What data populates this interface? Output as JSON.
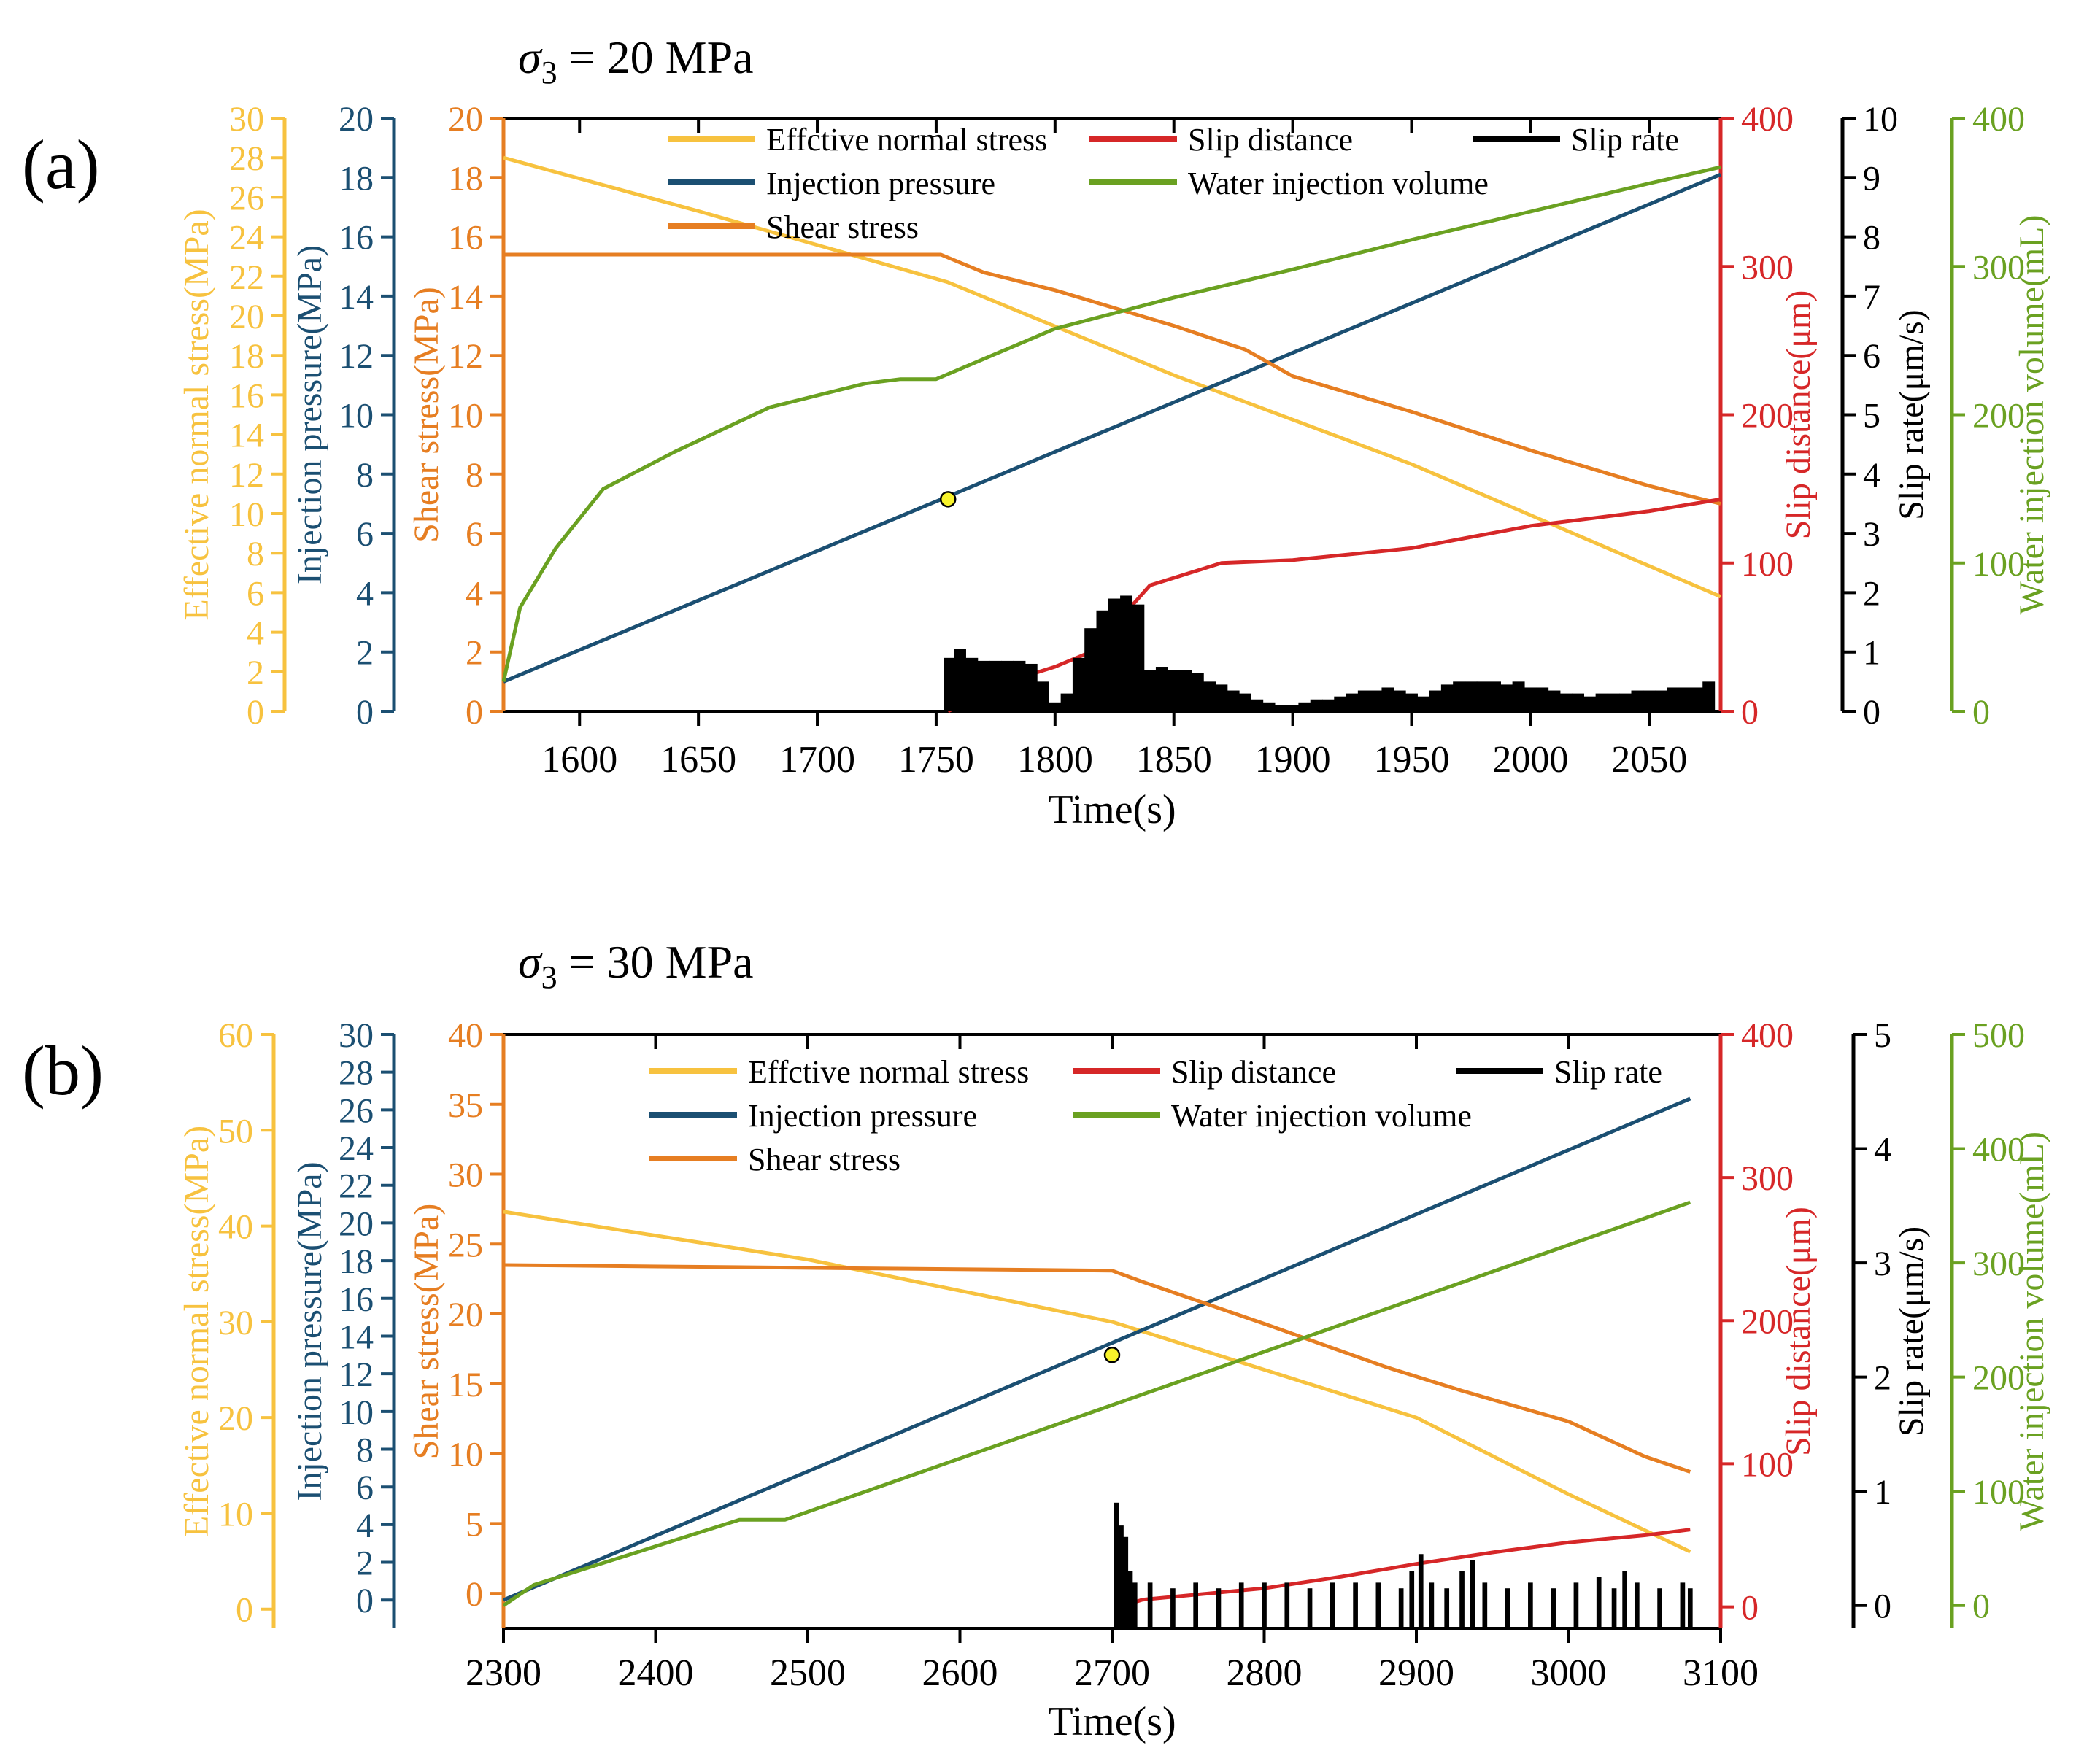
{
  "colors": {
    "effective_normal_stress": "#F7C23F",
    "injection_pressure": "#1B4F72",
    "shear_stress": "#E67E22",
    "slip_distance": "#D62728",
    "slip_rate": "#000000",
    "water_injection_volume": "#6AA121",
    "marker_fill": "#F8F32B"
  },
  "chart_data": [
    {
      "type": "line",
      "panel_label": "(a)",
      "title": "σ3 = 20 MPa",
      "title_main": "σ",
      "title_sub": "3",
      "title_rest": " = 20 MPa",
      "xlabel": "Time(s)",
      "xlim": [
        1568,
        2080
      ],
      "xticks": [
        1600,
        1650,
        1700,
        1750,
        1800,
        1850,
        1900,
        1950,
        2000,
        2050
      ],
      "legend": [
        {
          "label": "Effctive normal stress",
          "key": "effective_normal_stress"
        },
        {
          "label": "Slip distance",
          "key": "slip_distance"
        },
        {
          "label": "Slip rate",
          "key": "slip_rate"
        },
        {
          "label": "Injection pressure",
          "key": "injection_pressure"
        },
        {
          "label": "Water injection volume",
          "key": "water_injection_volume"
        },
        {
          "label": "Shear stress",
          "key": "shear_stress"
        }
      ],
      "axes": {
        "effective_normal_stress": {
          "label": "Effective normal stress(MPa)",
          "ylim": [
            0,
            30
          ],
          "ticks": [
            0,
            2,
            4,
            6,
            8,
            10,
            12,
            14,
            16,
            18,
            20,
            22,
            24,
            26,
            28,
            30
          ]
        },
        "injection_pressure": {
          "label": "Injection pressure(MPa)",
          "ylim": [
            0,
            20
          ],
          "ticks": [
            0,
            2,
            4,
            6,
            8,
            10,
            12,
            14,
            16,
            18,
            20
          ]
        },
        "shear_stress": {
          "label": "Shear stress(MPa)",
          "ylim": [
            0,
            20
          ],
          "ticks": [
            0,
            2,
            4,
            6,
            8,
            10,
            12,
            14,
            16,
            18,
            20
          ]
        },
        "slip_distance": {
          "label": "Slip distance(μm)",
          "ylim": [
            0,
            400
          ],
          "ticks": [
            0,
            100,
            200,
            300,
            400
          ]
        },
        "slip_rate": {
          "label": "Slip rate(μm/s)",
          "ylim": [
            0,
            10
          ],
          "ticks": [
            0,
            1,
            2,
            3,
            4,
            5,
            6,
            7,
            8,
            9,
            10
          ]
        },
        "water_injection_volume": {
          "label": "Water injection volume(mL)",
          "ylim": [
            0,
            400
          ],
          "ticks": [
            0,
            100,
            200,
            300,
            400
          ]
        }
      },
      "series": [
        {
          "name": "Effctive normal stress",
          "key": "effective_normal_stress",
          "axis": "effective_normal_stress",
          "x": [
            1568,
            1650,
            1755,
            1850,
            1950,
            2080
          ],
          "y": [
            28.0,
            25.3,
            21.7,
            17.0,
            12.5,
            5.8
          ]
        },
        {
          "name": "Injection pressure",
          "key": "injection_pressure",
          "axis": "injection_pressure",
          "x": [
            1568,
            2080
          ],
          "y": [
            1.0,
            18.1
          ]
        },
        {
          "name": "Shear stress",
          "key": "shear_stress",
          "axis": "shear_stress",
          "x": [
            1568,
            1600,
            1700,
            1752,
            1770,
            1800,
            1850,
            1880,
            1900,
            1950,
            2000,
            2050,
            2080
          ],
          "y": [
            15.4,
            15.4,
            15.4,
            15.4,
            14.8,
            14.2,
            13.0,
            12.2,
            11.3,
            10.1,
            8.8,
            7.6,
            7.0
          ]
        },
        {
          "name": "Slip distance",
          "key": "slip_distance",
          "axis": "slip_distance",
          "x": [
            1755,
            1780,
            1800,
            1815,
            1840,
            1870,
            1900,
            1950,
            2000,
            2050,
            2080
          ],
          "y": [
            0,
            20,
            30,
            40,
            85,
            100,
            102,
            110,
            125,
            135,
            143
          ]
        },
        {
          "name": "Water injection volume",
          "key": "water_injection_volume",
          "axis": "water_injection_volume",
          "x": [
            1568,
            1575,
            1590,
            1610,
            1640,
            1680,
            1720,
            1735,
            1750,
            1800,
            1850,
            1900,
            1950,
            2000,
            2050,
            2080
          ],
          "y": [
            20,
            70,
            110,
            150,
            175,
            205,
            221,
            224,
            224,
            258,
            279,
            298,
            318,
            337,
            356,
            367
          ]
        },
        {
          "name": "Slip rate",
          "key": "slip_rate",
          "axis": "slip_rate",
          "style": "bars",
          "x": [
            1756,
            1760,
            1765,
            1770,
            1775,
            1780,
            1785,
            1790,
            1795,
            1800,
            1805,
            1810,
            1815,
            1820,
            1825,
            1830,
            1835,
            1840,
            1845,
            1850,
            1855,
            1860,
            1865,
            1870,
            1875,
            1880,
            1885,
            1890,
            1895,
            1900,
            1905,
            1910,
            1915,
            1920,
            1925,
            1930,
            1935,
            1940,
            1945,
            1950,
            1955,
            1960,
            1965,
            1970,
            1975,
            1980,
            1985,
            1990,
            1995,
            2000,
            2005,
            2010,
            2015,
            2020,
            2025,
            2030,
            2035,
            2040,
            2045,
            2050,
            2055,
            2060,
            2065,
            2070,
            2075
          ],
          "y": [
            0.9,
            1.05,
            0.9,
            0.85,
            0.85,
            0.85,
            0.85,
            0.8,
            0.5,
            0.15,
            0.3,
            0.9,
            1.4,
            1.7,
            1.9,
            1.95,
            1.8,
            0.7,
            0.75,
            0.7,
            0.7,
            0.65,
            0.5,
            0.45,
            0.35,
            0.3,
            0.2,
            0.15,
            0.1,
            0.1,
            0.15,
            0.2,
            0.2,
            0.25,
            0.3,
            0.35,
            0.35,
            0.4,
            0.35,
            0.3,
            0.25,
            0.35,
            0.45,
            0.5,
            0.5,
            0.5,
            0.5,
            0.45,
            0.5,
            0.4,
            0.4,
            0.35,
            0.3,
            0.3,
            0.25,
            0.3,
            0.3,
            0.3,
            0.35,
            0.35,
            0.35,
            0.4,
            0.4,
            0.4,
            0.5
          ]
        },
        {
          "name": "Slip onset marker",
          "key": "marker",
          "axis": "injection_pressure",
          "style": "marker",
          "x": [
            1755
          ],
          "y": [
            7.15
          ]
        }
      ]
    },
    {
      "type": "line",
      "panel_label": "(b)",
      "title": "σ3 = 30 MPa",
      "title_main": "σ",
      "title_sub": "3",
      "title_rest": " = 30 MPa",
      "xlabel": "Time(s)",
      "xlim": [
        2300,
        3100
      ],
      "xticks": [
        2300,
        2400,
        2500,
        2600,
        2700,
        2800,
        2900,
        3000,
        3100
      ],
      "legend": [
        {
          "label": "Effctive normal stress",
          "key": "effective_normal_stress"
        },
        {
          "label": "Slip distance",
          "key": "slip_distance"
        },
        {
          "label": "Slip rate",
          "key": "slip_rate"
        },
        {
          "label": "Injection pressure",
          "key": "injection_pressure"
        },
        {
          "label": "Water injection volume",
          "key": "water_injection_volume"
        },
        {
          "label": "Shear stress",
          "key": "shear_stress"
        }
      ],
      "axes": {
        "effective_normal_stress": {
          "label": "Effective normal stress(MPa)",
          "ylim": [
            -2,
            60
          ],
          "ticks": [
            0,
            10,
            20,
            30,
            40,
            50,
            60
          ]
        },
        "injection_pressure": {
          "label": "Injection pressure(MPa)",
          "ylim": [
            -1.5,
            30
          ],
          "ticks": [
            0,
            2,
            4,
            6,
            8,
            10,
            12,
            14,
            16,
            18,
            20,
            22,
            24,
            26,
            28,
            30
          ]
        },
        "shear_stress": {
          "label": "Shear stress(MPa)",
          "ylim": [
            -2.5,
            40
          ],
          "ticks": [
            0,
            5,
            10,
            15,
            20,
            25,
            30,
            35,
            40
          ]
        },
        "slip_distance": {
          "label": "Slip distance(μm)",
          "ylim": [
            -15,
            400
          ],
          "ticks": [
            0,
            100,
            200,
            300,
            400
          ]
        },
        "slip_rate": {
          "label": "Slip rate(μm/s)",
          "ylim": [
            -0.2,
            5
          ],
          "ticks": [
            0,
            1,
            2,
            3,
            4,
            5
          ]
        },
        "water_injection_volume": {
          "label": "Water injection volume(mL)",
          "ylim": [
            -20,
            500
          ],
          "ticks": [
            0,
            100,
            200,
            300,
            400,
            500
          ]
        }
      },
      "series": [
        {
          "name": "Effctive normal stress",
          "key": "effective_normal_stress",
          "axis": "effective_normal_stress",
          "x": [
            2300,
            2500,
            2700,
            2800,
            2900,
            3000,
            3080
          ],
          "y": [
            41.5,
            36.5,
            30.0,
            25.0,
            20.0,
            12.0,
            6.0
          ]
        },
        {
          "name": "Injection pressure",
          "key": "injection_pressure",
          "axis": "injection_pressure",
          "x": [
            2300,
            3080
          ],
          "y": [
            0,
            26.6
          ]
        },
        {
          "name": "Shear stress",
          "key": "shear_stress",
          "axis": "shear_stress",
          "x": [
            2300,
            2500,
            2700,
            2720,
            2800,
            2880,
            2930,
            3000,
            3050,
            3080
          ],
          "y": [
            23.5,
            23.3,
            23.1,
            22.3,
            19.3,
            16.2,
            14.5,
            12.3,
            9.8,
            8.7
          ]
        },
        {
          "name": "Slip distance",
          "key": "slip_distance",
          "axis": "slip_distance",
          "x": [
            2705,
            2720,
            2750,
            2800,
            2850,
            2900,
            2950,
            3000,
            3050,
            3080
          ],
          "y": [
            0,
            5,
            8,
            13,
            21,
            30,
            38,
            45,
            50,
            54
          ]
        },
        {
          "name": "Water injection volume",
          "key": "water_injection_volume",
          "axis": "water_injection_volume",
          "x": [
            2300,
            2320,
            2455,
            2485,
            3080
          ],
          "y": [
            0,
            18,
            75,
            75,
            353
          ]
        },
        {
          "name": "Slip rate",
          "key": "slip_rate",
          "axis": "slip_rate",
          "style": "bars",
          "x": [
            2703,
            2706,
            2709,
            2712,
            2715,
            2725,
            2740,
            2755,
            2770,
            2785,
            2800,
            2815,
            2830,
            2845,
            2860,
            2875,
            2890,
            2897,
            2903,
            2910,
            2920,
            2930,
            2937,
            2945,
            2960,
            2975,
            2990,
            3005,
            3020,
            3030,
            3037,
            3045,
            3060,
            3075,
            3080
          ],
          "y": [
            0.9,
            0.7,
            0.6,
            0.3,
            0.2,
            0.2,
            0.15,
            0.2,
            0.15,
            0.2,
            0.2,
            0.2,
            0.15,
            0.2,
            0.2,
            0.2,
            0.15,
            0.3,
            0.45,
            0.2,
            0.15,
            0.3,
            0.4,
            0.2,
            0.15,
            0.2,
            0.15,
            0.2,
            0.25,
            0.15,
            0.3,
            0.2,
            0.15,
            0.2,
            0.15
          ]
        },
        {
          "name": "Slip onset marker",
          "key": "marker",
          "axis": "injection_pressure",
          "style": "marker",
          "x": [
            2700
          ],
          "y": [
            13.0
          ]
        }
      ]
    }
  ]
}
